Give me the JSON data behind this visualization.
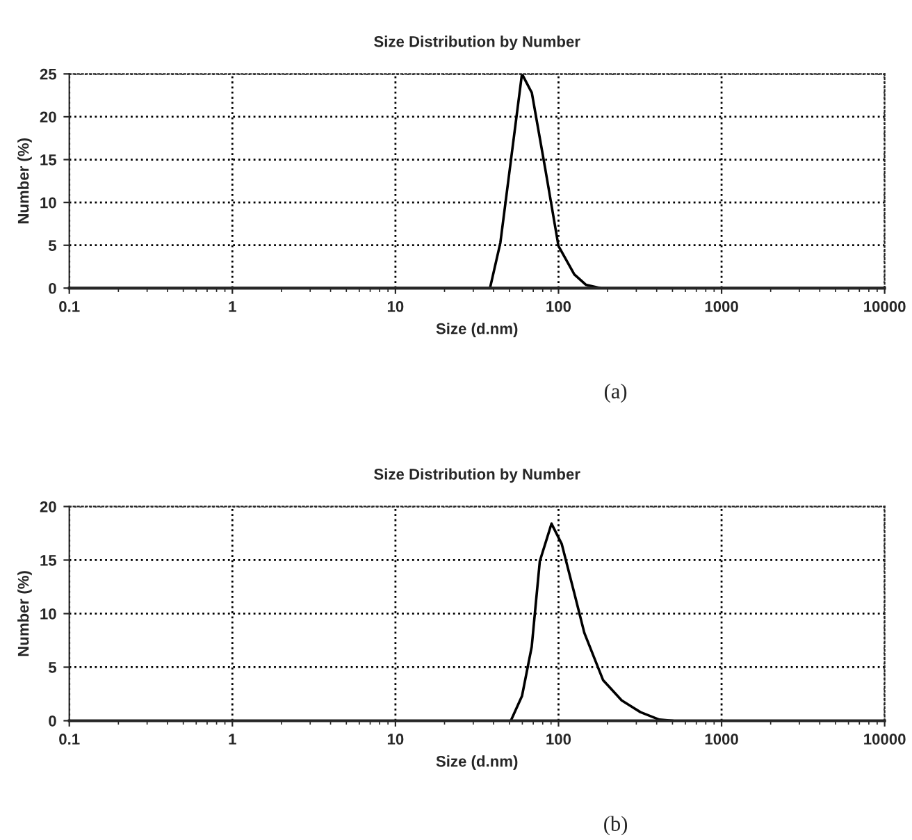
{
  "chart_data": [
    {
      "type": "line",
      "title": "Size Distribution by Number",
      "xlabel": "Size (d.nm)",
      "ylabel": "Number (%)",
      "log": "x",
      "grid": true,
      "legend": false,
      "marker": "none",
      "line_style": "solid",
      "xlim": [
        0.1,
        10000
      ],
      "xticks": [
        0.1,
        1,
        10,
        100,
        1000,
        10000
      ],
      "ylim": [
        0,
        25
      ],
      "yticks": [
        0,
        5,
        10,
        15,
        20,
        25
      ],
      "annotations": [
        "(a)"
      ],
      "series": [
        {
          "color": "#000000",
          "x": [
            38,
            44,
            59.7,
            68.6,
            82.8,
            100,
            125,
            147,
            180
          ],
          "values": [
            0,
            5.3,
            25,
            22.8,
            14,
            4.9,
            1.6,
            0.4,
            0
          ]
        }
      ]
    },
    {
      "type": "line",
      "title": "Size Distribution by Number",
      "xlabel": "Size (d.nm)",
      "ylabel": "Number (%)",
      "log": "x",
      "grid": true,
      "legend": false,
      "marker": "none",
      "line_style": "solid",
      "xlim": [
        0.1,
        10000
      ],
      "xticks": [
        0.1,
        1,
        10,
        100,
        1000,
        10000
      ],
      "ylim": [
        0,
        20
      ],
      "yticks": [
        0,
        5,
        10,
        15,
        20
      ],
      "annotations": [
        "(b)"
      ],
      "series": [
        {
          "color": "#000000",
          "x": [
            51,
            59.7,
            68.5,
            76.8,
            90.6,
            104.7,
            126,
            144,
            187.5,
            244,
            318,
            415,
            506
          ],
          "values": [
            0,
            2.3,
            6.9,
            14.9,
            18.4,
            16.5,
            11.7,
            8.2,
            3.8,
            1.9,
            0.8,
            0.1,
            0
          ]
        }
      ]
    }
  ]
}
